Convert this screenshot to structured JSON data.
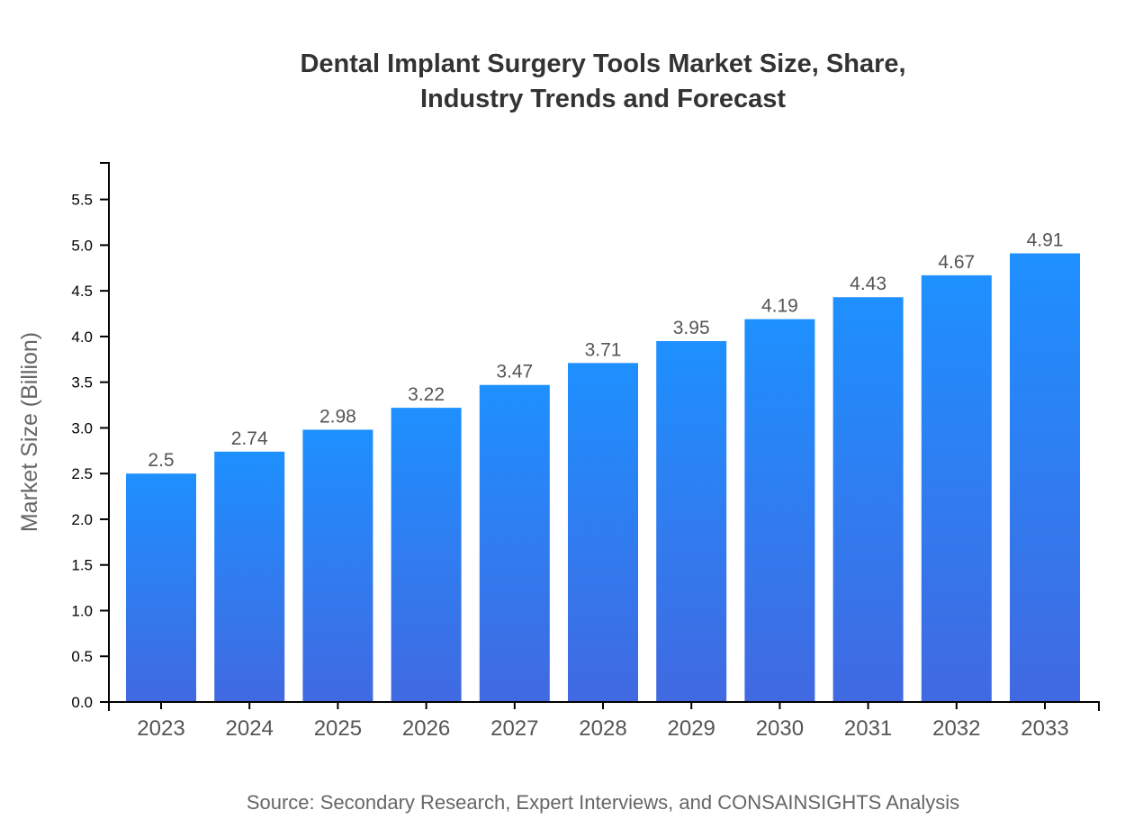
{
  "chart_data": {
    "type": "bar",
    "title_lines": [
      "Dental Implant Surgery Tools Market Size, Share,",
      "Industry Trends and Forecast"
    ],
    "categories": [
      "2023",
      "2024",
      "2025",
      "2026",
      "2027",
      "2028",
      "2029",
      "2030",
      "2031",
      "2032",
      "2033"
    ],
    "values": [
      2.5,
      2.74,
      2.98,
      3.22,
      3.47,
      3.71,
      3.95,
      4.19,
      4.43,
      4.67,
      4.91
    ],
    "data_labels": [
      "2.5",
      "2.74",
      "2.98",
      "3.22",
      "3.47",
      "3.71",
      "3.95",
      "4.19",
      "4.43",
      "4.67",
      "4.91"
    ],
    "xlabel": "",
    "ylabel": "Market Size (Billion)",
    "ylim": [
      0,
      5.9
    ],
    "yticks": [
      "0.0",
      "0.5",
      "1.0",
      "1.5",
      "2.0",
      "2.5",
      "3.0",
      "3.5",
      "4.0",
      "4.5",
      "5.0",
      "5.5"
    ],
    "grid": false,
    "bar_color_top": "#1e90ff",
    "bar_color_bottom": "#4169e1",
    "source": "Source: Secondary Research, Expert Interviews, and CONSAINSIGHTS Analysis"
  }
}
